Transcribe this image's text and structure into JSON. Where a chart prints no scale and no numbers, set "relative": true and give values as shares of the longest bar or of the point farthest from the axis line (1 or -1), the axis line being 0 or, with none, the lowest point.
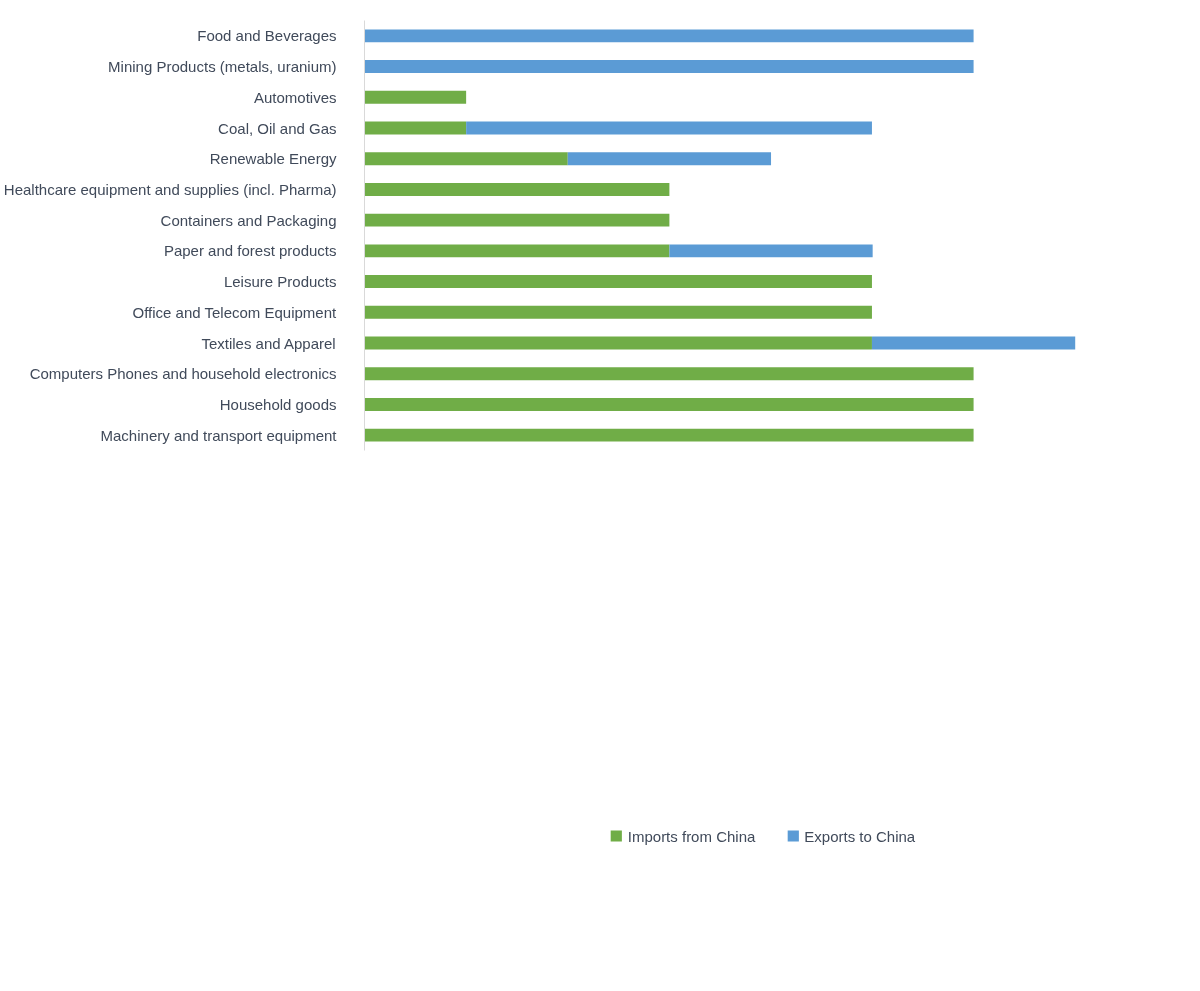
{
  "chart_data": {
    "type": "bar",
    "orientation": "horizontal",
    "stacked": true,
    "relative": true,
    "legend": "bottom",
    "grid": false,
    "categories": [
      "Food and Beverages",
      "Mining Products (metals, uranium)",
      "Automotives",
      "Coal, Oil and Gas",
      "Renewable Energy",
      "Healthcare equipment and supplies (incl. Pharma)",
      "Containers and Packaging",
      "Paper and forest products",
      "Leisure Products",
      "Office and Telecom Equipment",
      "Textiles and Apparel",
      "Computers Phones and household electronics",
      "Household goods",
      "Machinery and transport equipment"
    ],
    "series": [
      {
        "name": "Imports from China",
        "color": "#70ad47",
        "values": [
          null,
          null,
          0.143,
          0.143,
          0.286,
          0.429,
          0.429,
          0.429,
          0.714,
          0.714,
          0.714,
          0.857,
          0.857,
          0.857
        ]
      },
      {
        "name": "Exports to China",
        "color": "#5b9bd5",
        "values": [
          0.857,
          0.857,
          null,
          0.571,
          0.286,
          null,
          null,
          0.286,
          null,
          null,
          0.286,
          null,
          null,
          null
        ]
      }
    ]
  }
}
